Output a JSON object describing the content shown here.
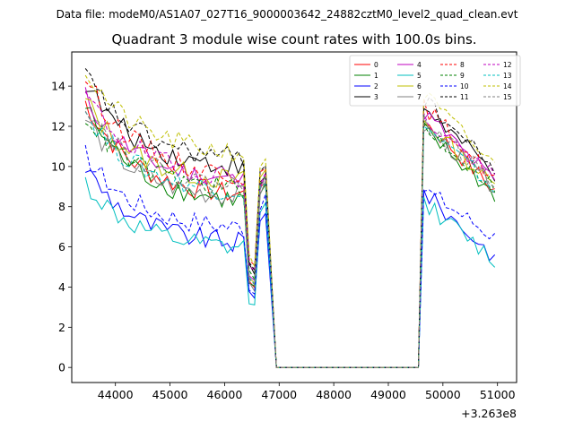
{
  "chart_data": {
    "type": "line",
    "suptitle": "Data file: modeM0/AS1A07_027T16_9000003642_24882cztM0_level2_quad_clean.evt",
    "title": "Quadrant 3 module wise count rates with 100.0s bins.",
    "xlabel": "",
    "ylabel": "",
    "x_offset_label": "+3.263e8",
    "xlim": [
      43200,
      51350
    ],
    "ylim": [
      -0.75,
      15.7
    ],
    "x_ticks": [
      44000,
      45000,
      46000,
      47000,
      48000,
      49000,
      50000,
      51000
    ],
    "y_ticks": [
      0,
      2,
      4,
      6,
      8,
      10,
      12,
      14
    ],
    "x_tick_labels": [
      "44000",
      "45000",
      "46000",
      "47000",
      "48000",
      "49000",
      "50000",
      "51000"
    ],
    "y_tick_labels": [
      "0",
      "2",
      "4",
      "6",
      "8",
      "10",
      "12",
      "14"
    ],
    "segments": [
      {
        "start": 43450,
        "end": 46350
      },
      {
        "start": 46450,
        "end": 46550
      },
      {
        "start": 46650,
        "end": 46750
      },
      {
        "start": 46950,
        "end": 49550
      },
      {
        "start": 49650,
        "end": 50950
      }
    ],
    "series": [
      {
        "name": "0",
        "color": "#ff0000",
        "style": "solid",
        "start": 13.2,
        "end46": 8.6,
        "dip": 4.4,
        "peak": 9.2,
        "late_start": 12.3,
        "late_end": 8.8
      },
      {
        "name": "1",
        "color": "#008000",
        "style": "solid",
        "start": 13.0,
        "end46": 8.3,
        "dip": 4.2,
        "peak": 9.0,
        "late_start": 11.8,
        "late_end": 8.6
      },
      {
        "name": "2",
        "color": "#0000ff",
        "style": "solid",
        "start": 10.0,
        "end46": 6.2,
        "dip": 3.7,
        "peak": 7.8,
        "late_start": 8.7,
        "late_end": 5.5
      },
      {
        "name": "3",
        "color": "#000000",
        "style": "solid",
        "start": 14.2,
        "end46": 10.0,
        "dip": 5.0,
        "peak": 9.5,
        "late_start": 13.0,
        "late_end": 9.6
      },
      {
        "name": "4",
        "color": "#bf00bf",
        "style": "solid",
        "start": 13.5,
        "end46": 9.3,
        "dip": 4.8,
        "peak": 9.4,
        "late_start": 12.7,
        "late_end": 9.2
      },
      {
        "name": "5",
        "color": "#00bfbf",
        "style": "solid",
        "start": 9.2,
        "end46": 5.9,
        "dip": 3.3,
        "peak": 8.3,
        "late_start": 8.2,
        "late_end": 5.3
      },
      {
        "name": "6",
        "color": "#bfbf00",
        "style": "solid",
        "start": 13.3,
        "end46": 9.3,
        "dip": 4.5,
        "peak": 9.8,
        "late_start": 12.3,
        "late_end": 9.0
      },
      {
        "name": "7",
        "color": "#808080",
        "style": "solid",
        "start": 12.4,
        "end46": 8.5,
        "dip": 4.2,
        "peak": 9.1,
        "late_start": 12.0,
        "late_end": 9.0
      },
      {
        "name": "8",
        "color": "#ff0000",
        "style": "dashed",
        "start": 14.5,
        "end46": 9.6,
        "dip": 5.2,
        "peak": 10.0,
        "late_start": 13.0,
        "late_end": 9.4
      },
      {
        "name": "9",
        "color": "#008000",
        "style": "dashed",
        "start": 12.6,
        "end46": 8.9,
        "dip": 4.6,
        "peak": 9.5,
        "late_start": 12.0,
        "late_end": 9.0
      },
      {
        "name": "10",
        "color": "#0000ff",
        "style": "dashed",
        "start": 10.6,
        "end46": 7.0,
        "dip": 4.0,
        "peak": 8.4,
        "late_start": 8.9,
        "late_end": 6.5
      },
      {
        "name": "11",
        "color": "#000000",
        "style": "dashed",
        "start": 14.6,
        "end46": 10.4,
        "dip": 5.3,
        "peak": 10.1,
        "late_start": 13.3,
        "late_end": 9.9
      },
      {
        "name": "12",
        "color": "#bf00bf",
        "style": "dashed",
        "start": 13.6,
        "end46": 9.5,
        "dip": 5.0,
        "peak": 9.6,
        "late_start": 12.4,
        "late_end": 9.4
      },
      {
        "name": "13",
        "color": "#00bfbf",
        "style": "dashed",
        "start": 12.8,
        "end46": 8.8,
        "dip": 4.4,
        "peak": 9.3,
        "late_start": 12.0,
        "late_end": 8.9
      },
      {
        "name": "14",
        "color": "#bfbf00",
        "style": "dashed",
        "start": 14.8,
        "end46": 10.7,
        "dip": 5.4,
        "peak": 10.4,
        "late_start": 13.6,
        "late_end": 10.0
      },
      {
        "name": "15",
        "color": "#808080",
        "style": "dashed",
        "start": 13.2,
        "end46": 9.0,
        "dip": 4.6,
        "peak": 9.4,
        "late_start": 12.2,
        "late_end": 9.2
      }
    ]
  }
}
